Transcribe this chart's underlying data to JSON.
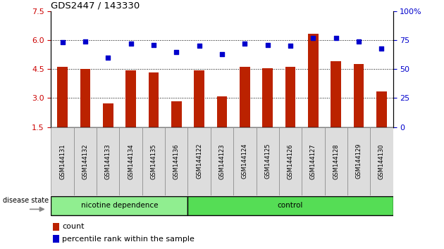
{
  "title": "GDS2447 / 143330",
  "samples": [
    "GSM144131",
    "GSM144132",
    "GSM144133",
    "GSM144134",
    "GSM144135",
    "GSM144136",
    "GSM144122",
    "GSM144123",
    "GSM144124",
    "GSM144125",
    "GSM144126",
    "GSM144127",
    "GSM144128",
    "GSM144129",
    "GSM144130"
  ],
  "bar_values": [
    4.62,
    4.5,
    2.72,
    4.44,
    4.32,
    2.82,
    4.44,
    3.1,
    4.62,
    4.55,
    4.6,
    6.32,
    4.92,
    4.78,
    3.33
  ],
  "dot_values": [
    73,
    74,
    60,
    72,
    71,
    65,
    70,
    63,
    72,
    71,
    70,
    77,
    77,
    74,
    68
  ],
  "nicotine_count": 6,
  "total_count": 15,
  "ylim_left": [
    1.5,
    7.5
  ],
  "ylim_right": [
    0,
    100
  ],
  "yticks_left": [
    1.5,
    3.0,
    4.5,
    6.0,
    7.5
  ],
  "yticks_right": [
    0,
    25,
    50,
    75,
    100
  ],
  "bar_color": "#BB2200",
  "dot_color": "#0000CC",
  "background_color": "#ffffff",
  "nicotine_group_color": "#90EE90",
  "control_group_color": "#55DD55",
  "sample_box_color": "#DDDDDD",
  "label_count": "count",
  "label_percentile": "percentile rank within the sample",
  "disease_state_label": "disease state",
  "tick_label_color_left": "#CC0000",
  "tick_label_color_right": "#0000CC",
  "grid_yticks": [
    3.0,
    4.5,
    6.0
  ],
  "bar_width": 0.45
}
